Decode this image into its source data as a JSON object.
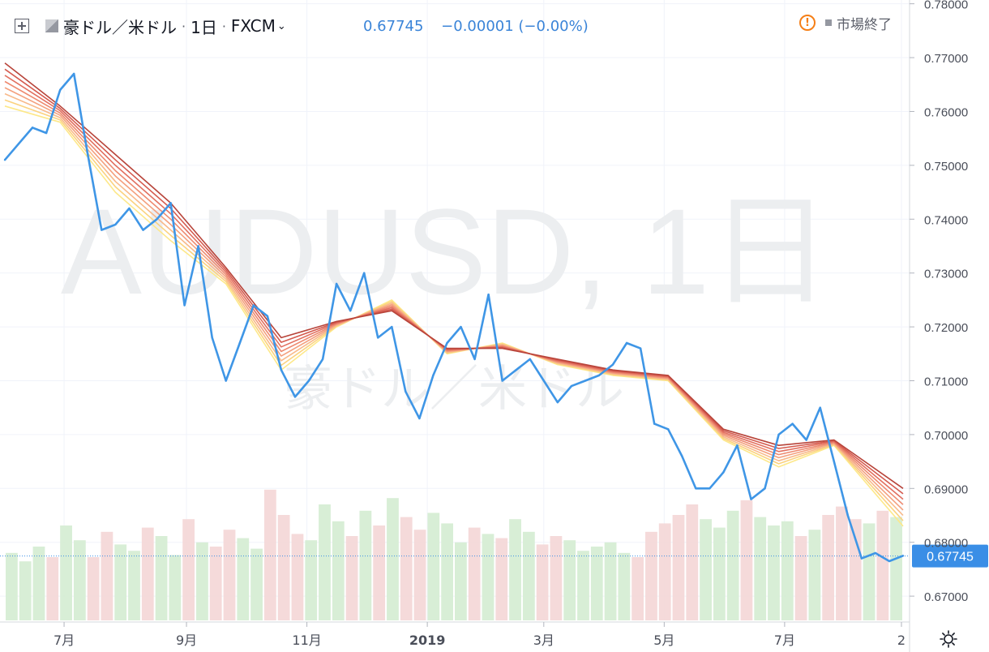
{
  "header": {
    "symbol": "豪ドル／米ドル",
    "interval": "1日",
    "exchange": "FXCM",
    "icons": [
      "plus-icon",
      "flag-icon",
      "chevron-down-icon"
    ]
  },
  "quote": {
    "last": "0.67745",
    "change": "−0.00001 (−0.00%)"
  },
  "status": {
    "icon": "warning-icon",
    "text": "市場終了"
  },
  "settings": {
    "icon": "gear-icon"
  },
  "watermark": {
    "main": "AUDUSD, 1日",
    "sub": "豪ドル／米ドル"
  },
  "colors": {
    "price_line": "#3f96e6",
    "ribbon": [
      "#fde88a",
      "#fbd27f",
      "#f8b98a",
      "#f4a07e",
      "#ee8a70",
      "#e27060",
      "#d55b4f",
      "#b8443a"
    ],
    "volume_up": "#d4ecd2",
    "volume_down": "#f4d6d6",
    "last_price_label": "#3a8ee6"
  },
  "chart_data": {
    "type": "line",
    "title": "豪ドル／米ドル · 1日 · FXCM",
    "y_axis": {
      "ticks": [
        "0.78000",
        "0.77000",
        "0.76000",
        "0.75000",
        "0.74000",
        "0.73000",
        "0.72000",
        "0.71000",
        "0.70000",
        "0.69000",
        "0.68000",
        "0.67000"
      ],
      "ylim": [
        0.6655,
        0.7807
      ]
    },
    "x_axis": {
      "ticks": [
        "7月",
        "9月",
        "11月",
        "2019",
        "3月",
        "5月",
        "7月",
        "2"
      ]
    },
    "last_price": {
      "value": 0.67745,
      "label": "0.67745"
    },
    "series": [
      {
        "name": "AUDUSD",
        "x": [
          "2018-06-01",
          "2018-06-08",
          "2018-06-15",
          "2018-06-22",
          "2018-06-29",
          "2018-07-06",
          "2018-07-13",
          "2018-07-20",
          "2018-07-27",
          "2018-08-03",
          "2018-08-10",
          "2018-08-17",
          "2018-08-24",
          "2018-08-31",
          "2018-09-07",
          "2018-09-14",
          "2018-09-21",
          "2018-09-28",
          "2018-10-05",
          "2018-10-12",
          "2018-10-19",
          "2018-10-26",
          "2018-11-02",
          "2018-11-09",
          "2018-11-16",
          "2018-11-23",
          "2018-11-30",
          "2018-12-07",
          "2018-12-14",
          "2018-12-21",
          "2018-12-28",
          "2019-01-04",
          "2019-01-11",
          "2019-01-18",
          "2019-01-25",
          "2019-02-01",
          "2019-02-08",
          "2019-02-15",
          "2019-02-22",
          "2019-03-01",
          "2019-03-08",
          "2019-03-15",
          "2019-03-22",
          "2019-03-29",
          "2019-04-05",
          "2019-04-12",
          "2019-04-19",
          "2019-04-26",
          "2019-05-03",
          "2019-05-10",
          "2019-05-17",
          "2019-05-24",
          "2019-05-31",
          "2019-06-07",
          "2019-06-14",
          "2019-06-21",
          "2019-06-28",
          "2019-07-05",
          "2019-07-12",
          "2019-07-19",
          "2019-07-26",
          "2019-08-02",
          "2019-08-09",
          "2019-08-16",
          "2019-08-23",
          "2019-08-30"
        ],
        "values": [
          0.751,
          0.754,
          0.757,
          0.756,
          0.764,
          0.767,
          0.752,
          0.738,
          0.739,
          0.742,
          0.738,
          0.74,
          0.743,
          0.724,
          0.735,
          0.718,
          0.71,
          0.717,
          0.724,
          0.722,
          0.712,
          0.707,
          0.71,
          0.714,
          0.728,
          0.723,
          0.73,
          0.718,
          0.72,
          0.708,
          0.703,
          0.711,
          0.717,
          0.72,
          0.714,
          0.726,
          0.71,
          0.712,
          0.714,
          0.71,
          0.706,
          0.709,
          0.71,
          0.711,
          0.713,
          0.717,
          0.716,
          0.702,
          0.701,
          0.696,
          0.69,
          0.69,
          0.693,
          0.698,
          0.688,
          0.69,
          0.7,
          0.702,
          0.699,
          0.705,
          0.695,
          0.685,
          0.677,
          0.678,
          0.6765,
          0.6775
        ]
      },
      {
        "name": "EMA ribbon (fast)",
        "x": [
          "2018-06-01",
          "2018-06-29",
          "2018-07-27",
          "2018-08-24",
          "2018-09-21",
          "2018-10-19",
          "2018-11-16",
          "2018-12-14",
          "2019-01-11",
          "2019-02-08",
          "2019-03-08",
          "2019-04-05",
          "2019-05-03",
          "2019-05-31",
          "2019-06-28",
          "2019-07-26",
          "2019-08-30"
        ],
        "values": [
          0.761,
          0.758,
          0.745,
          0.736,
          0.728,
          0.712,
          0.72,
          0.725,
          0.715,
          0.717,
          0.713,
          0.711,
          0.71,
          0.699,
          0.694,
          0.698,
          0.683
        ]
      },
      {
        "name": "EMA ribbon (slow)",
        "x": [
          "2018-06-01",
          "2018-06-29",
          "2018-07-27",
          "2018-08-24",
          "2018-09-21",
          "2018-10-19",
          "2018-11-16",
          "2018-12-14",
          "2019-01-11",
          "2019-02-08",
          "2019-03-08",
          "2019-04-05",
          "2019-05-03",
          "2019-05-31",
          "2019-06-28",
          "2019-07-26",
          "2019-08-30"
        ],
        "values": [
          0.769,
          0.761,
          0.752,
          0.743,
          0.731,
          0.718,
          0.721,
          0.723,
          0.716,
          0.716,
          0.714,
          0.712,
          0.711,
          0.701,
          0.698,
          0.699,
          0.69
        ]
      }
    ],
    "volume": [
      0.32,
      0.28,
      0.35,
      0.3,
      0.45,
      0.38,
      0.3,
      0.42,
      0.36,
      0.33,
      0.44,
      0.4,
      0.31,
      0.48,
      0.37,
      0.35,
      0.43,
      0.39,
      0.34,
      0.62,
      0.5,
      0.41,
      0.38,
      0.55,
      0.47,
      0.4,
      0.52,
      0.45,
      0.58,
      0.49,
      0.43,
      0.51,
      0.46,
      0.37,
      0.44,
      0.41,
      0.39,
      0.48,
      0.42,
      0.36,
      0.4,
      0.38,
      0.33,
      0.35,
      0.37,
      0.32,
      0.3,
      0.42,
      0.46,
      0.5,
      0.55,
      0.48,
      0.44,
      0.52,
      0.57,
      0.49,
      0.45,
      0.47,
      0.4,
      0.43,
      0.5,
      0.54,
      0.48,
      0.46,
      0.52,
      0.49
    ]
  }
}
